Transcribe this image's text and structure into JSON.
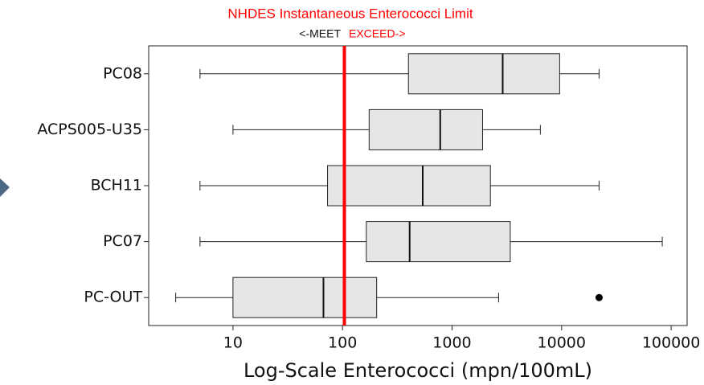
{
  "chart_data": {
    "type": "boxplot",
    "title": "NHDES Instantaneous Enterococci Limit",
    "annotation_left": "<-MEET",
    "annotation_right": "EXCEED->",
    "x_label": "Log-Scale Enterococci (mpn/100mL)",
    "categories": [
      "PC08",
      "ACPS005-U35",
      "BCH11",
      "PC07",
      "PC-OUT"
    ],
    "boxes": [
      {
        "low": 5,
        "q1": 400,
        "median": 2900,
        "q3": 9600,
        "high": 22000,
        "outliers": []
      },
      {
        "low": 10,
        "q1": 175,
        "median": 780,
        "q3": 1900,
        "high": 6400,
        "outliers": []
      },
      {
        "low": 5,
        "q1": 73,
        "median": 540,
        "q3": 2240,
        "high": 22000,
        "outliers": []
      },
      {
        "low": 5,
        "q1": 165,
        "median": 410,
        "q3": 3400,
        "high": 83000,
        "outliers": []
      },
      {
        "low": 3,
        "q1": 10,
        "median": 67,
        "q3": 205,
        "high": 2660,
        "outliers": [
          22000
        ]
      }
    ],
    "box_color": "#e6e6e6",
    "limit": 104,
    "limit_color": "#ff0000",
    "xscale": "log",
    "xlim": [
      1.7,
      140000
    ],
    "xticks": [
      10,
      100,
      1000,
      10000,
      100000
    ]
  }
}
